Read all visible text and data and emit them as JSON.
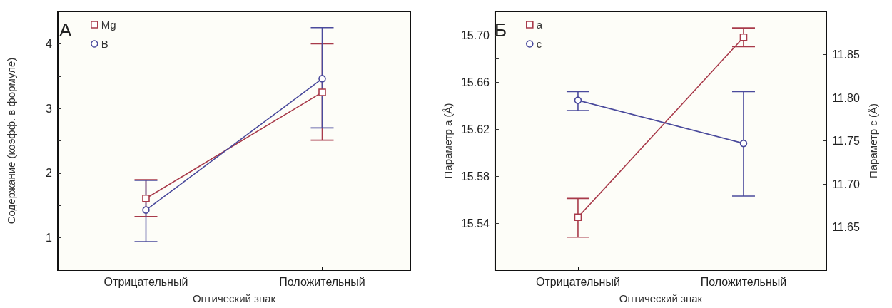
{
  "chart_data": [
    {
      "type": "line",
      "title": "А",
      "xlabel": "Оптический знак",
      "ylabel": "Содержание (коэфф. в формуле)",
      "categories": [
        "Отрицательный",
        "Положительный"
      ],
      "series": [
        {
          "name": "Mg",
          "color": "#a83a4a",
          "marker": "square",
          "values": [
            1.61,
            3.25
          ],
          "errors": [
            [
              1.33,
              1.9
            ],
            [
              2.51,
              4.0
            ]
          ]
        },
        {
          "name": "B",
          "color": "#4a4a9c",
          "marker": "circle",
          "values": [
            1.43,
            3.46
          ],
          "errors": [
            [
              0.94,
              1.89
            ],
            [
              2.7,
              4.25
            ]
          ]
        }
      ],
      "ylim": [
        0.5,
        4.5
      ],
      "yticks": [
        1,
        {
          "value": 1.5,
          "label": null
        },
        2,
        {
          "value": 2.5,
          "label": null
        },
        3,
        {
          "value": 3.5,
          "label": null
        },
        4
      ],
      "grid": false,
      "legend": "top left",
      "line_style": "solid"
    },
    {
      "type": "line",
      "title": "Б",
      "xlabel": "Оптический знак",
      "ylabel": "Параметр a (Å)",
      "y2label": "Параметр c (Å)",
      "categories": [
        "Отрицательный",
        "Положительный"
      ],
      "series": [
        {
          "name": "a",
          "color": "#a83a4a",
          "marker": "square",
          "values": [
            15.545,
            15.698
          ],
          "errors": [
            [
              15.528,
              15.561
            ],
            [
              15.69,
              15.706
            ]
          ]
        },
        {
          "name": "c",
          "color": "#4a4a9c",
          "marker": "circle",
          "axis": "y2",
          "values": [
            11.797,
            11.747
          ],
          "errors": [
            [
              11.785,
              11.807
            ],
            [
              11.686,
              11.807
            ]
          ]
        }
      ],
      "ylim": [
        15.5,
        15.72
      ],
      "yticks": [
        {
          "value": 15.52,
          "label": null
        },
        15.54,
        {
          "value": 15.56,
          "label": null
        },
        15.58,
        {
          "value": 15.6,
          "label": null
        },
        15.62,
        {
          "value": 15.64,
          "label": null
        },
        15.66,
        {
          "value": 15.68,
          "label": null
        },
        {
          "value": 15.7,
          "label": "15.70"
        }
      ],
      "y2lim": [
        11.6,
        11.9
      ],
      "y2ticks": [
        11.65,
        {
          "value": 11.7,
          "label": "11.70"
        },
        11.75,
        {
          "value": 11.8,
          "label": "11.80"
        },
        11.85
      ],
      "grid": false,
      "legend": "top left",
      "line_style": "solid"
    }
  ]
}
